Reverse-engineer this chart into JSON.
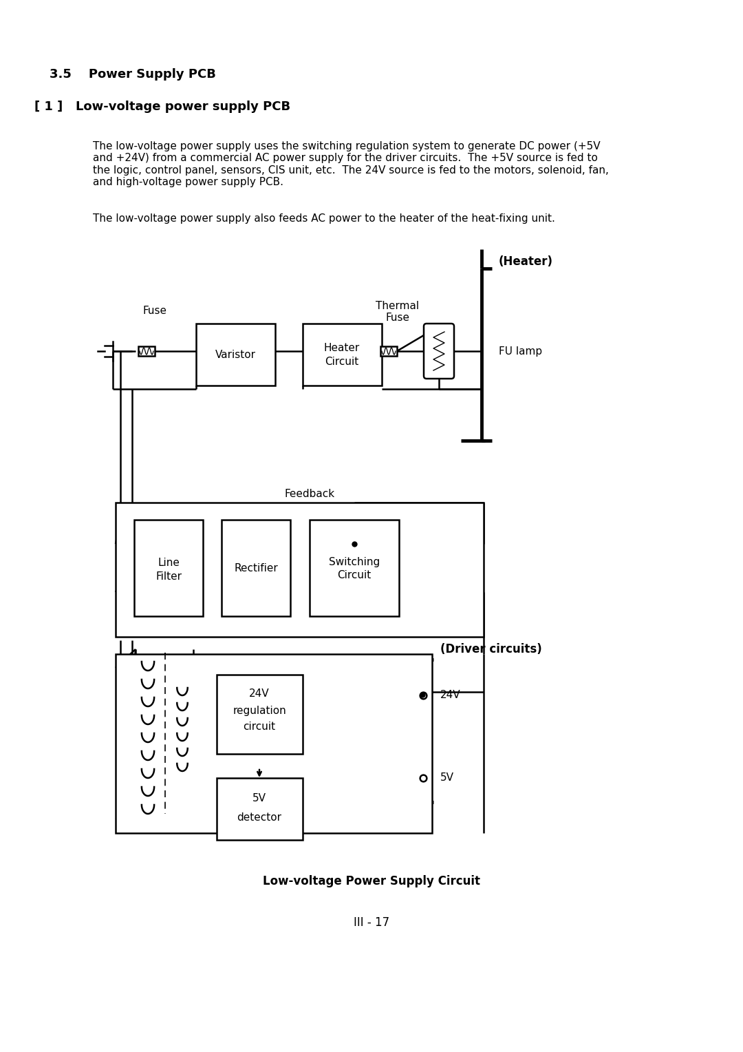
{
  "title_section": "3.5    Power Supply PCB",
  "subtitle_section": "[ 1 ]   Low-voltage power supply PCB",
  "body_text_1": "The low-voltage power supply uses the switching regulation system to generate DC power (+5V\nand +24V) from a commercial AC power supply for the driver circuits.  The +5V source is fed to\nthe logic, control panel, sensors, CIS unit, etc.  The 24V source is fed to the motors, solenoid, fan,\nand high-voltage power supply PCB.",
  "body_text_2": "The low-voltage power supply also feeds AC power to the heater of the heat-fixing unit.",
  "caption": "Low-voltage Power Supply Circuit",
  "page_number": "III - 17",
  "bg_color": "#ffffff",
  "line_color": "#000000"
}
